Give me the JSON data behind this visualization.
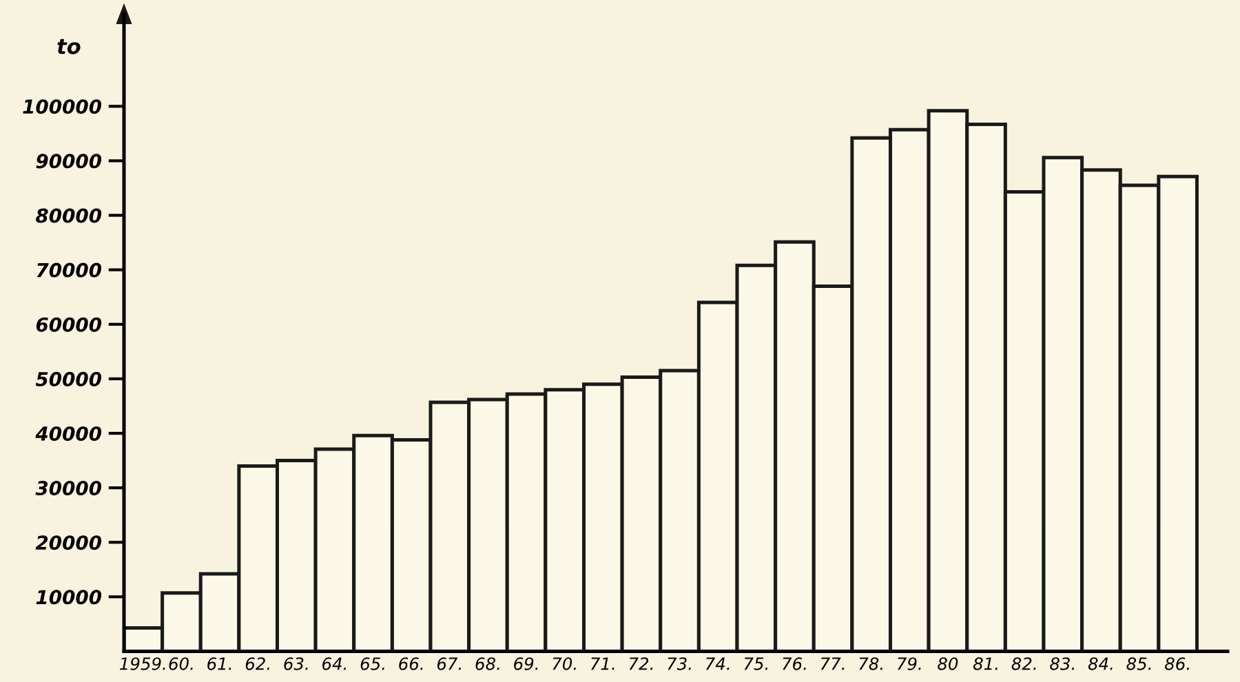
{
  "chart_data": {
    "type": "bar",
    "ylabel": "to",
    "categories": [
      "1959.",
      "60.",
      "61.",
      "62.",
      "63.",
      "64.",
      "65.",
      "66.",
      "67.",
      "68.",
      "69.",
      "70.",
      "71.",
      "72.",
      "73.",
      "74.",
      "75.",
      "76.",
      "77.",
      "78.",
      "79.",
      "80",
      "81.",
      "82.",
      "83.",
      "84.",
      "85.",
      "86."
    ],
    "values": [
      4300,
      10700,
      14200,
      34000,
      35000,
      37100,
      39600,
      38800,
      45700,
      46200,
      47200,
      48000,
      49000,
      50300,
      51500,
      64000,
      70800,
      75100,
      67000,
      94200,
      95700,
      99200,
      96700,
      84300,
      90600,
      88300,
      85500,
      87100
    ],
    "color": "#fbf8e8",
    "ylim": [
      0,
      117000
    ],
    "yticks": [
      10000,
      20000,
      30000,
      40000,
      50000,
      60000,
      70000,
      80000,
      90000,
      100000
    ],
    "grid": false,
    "legend": false
  }
}
